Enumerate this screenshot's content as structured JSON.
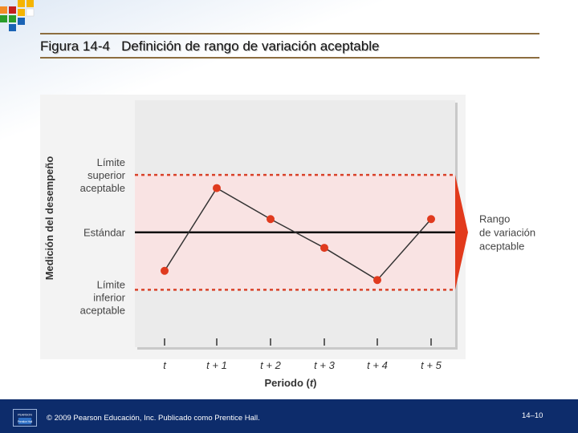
{
  "slide": {
    "title_figure": "Figura 14-4",
    "title_text": "Definición de rango de variación aceptable"
  },
  "chart_data": {
    "type": "line",
    "ylabel": "Medición del desempeño",
    "xlabel_prefix": "Periodo (",
    "xlabel_var": "t",
    "xlabel_suffix": ")",
    "categories": [
      "t",
      "t + 1",
      "t + 2",
      "t + 3",
      "t + 4",
      "t + 5"
    ],
    "values": [
      -0.67,
      0.77,
      0.23,
      -0.27,
      -0.83,
      0.23
    ],
    "standard_value": 0,
    "upper_limit_value": 1,
    "lower_limit_value": -1,
    "ylim": [
      -2.0,
      2.3
    ],
    "reference_labels": {
      "upper": [
        "Límite",
        "superior",
        "aceptable"
      ],
      "standard": "Estándar",
      "lower": [
        "Límite",
        "inferior",
        "aceptable"
      ]
    },
    "range_label": [
      "Rango",
      "de variación",
      "aceptable"
    ],
    "colors": {
      "line": "#333333",
      "points": "#e03a1e",
      "limits": "#d9422a",
      "standard": "#111111",
      "band": "#f9e3e3",
      "range_arrow": "#e23a1c"
    }
  },
  "footer": {
    "copyright": "© 2009 Pearson Educación, Inc. Publicado como Prentice Hall.",
    "page": "14–10",
    "logo_top": "PEARSON",
    "logo_bottom": "Prentice Hall"
  }
}
